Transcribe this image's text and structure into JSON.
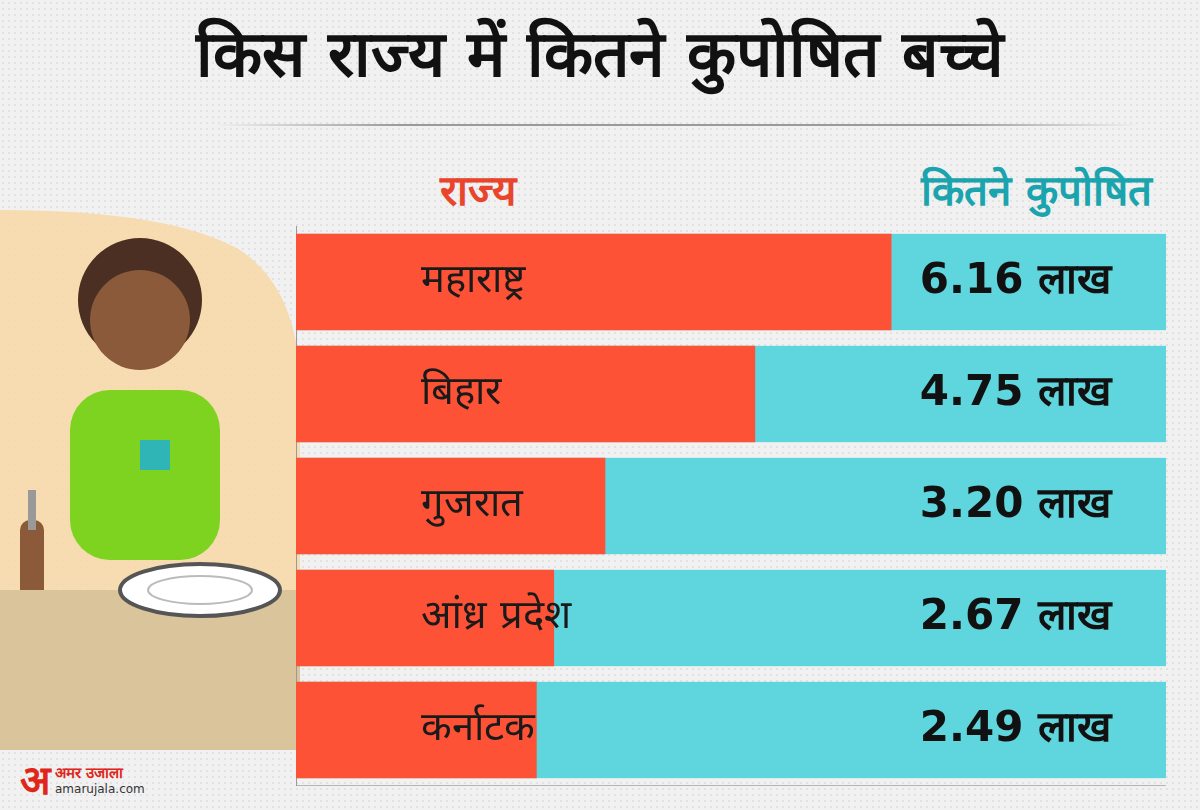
{
  "chart_data": {
    "type": "bar",
    "title": "किस राज्य में कितने कुपोषित बच्चे",
    "y_label": "राज्य",
    "x_label": "कितने कुपोषित",
    "orientation": "horizontal",
    "categories": [
      "महाराष्ट्र",
      "बिहार",
      "गुजरात",
      "आंध्र प्रदेश",
      "कर्नाटक"
    ],
    "values": [
      6.16,
      4.75,
      3.2,
      2.67,
      2.49
    ],
    "value_labels": [
      "6.16 लाख",
      "4.75 लाख",
      "3.20 लाख",
      "2.67 लाख",
      "2.49 लाख"
    ],
    "color": "#fe5236",
    "xlim": [
      0,
      9
    ],
    "grid": false,
    "data_labels": true,
    "tick_labels": false
  },
  "source": {
    "mark": "अ",
    "name": "अमर उजाला",
    "url": "amarujala.com"
  }
}
